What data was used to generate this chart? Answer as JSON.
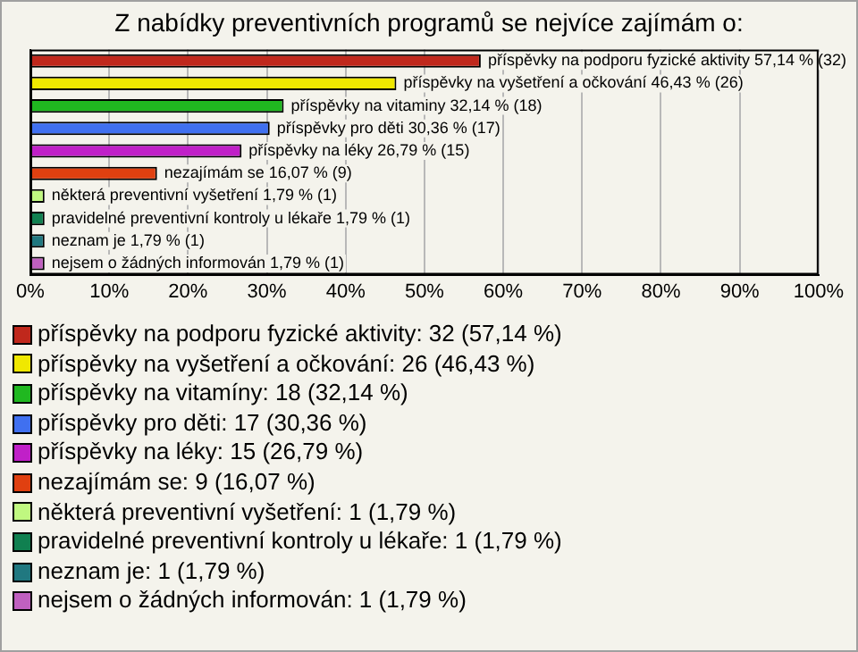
{
  "chart_data": {
    "type": "bar",
    "orientation": "horizontal",
    "title": "Z nabídky preventivních programů se nejvíce zajímám o:",
    "categories": [
      null,
      null,
      null,
      null,
      null,
      null,
      null,
      null,
      null,
      null
    ],
    "xlim": [
      0,
      100
    ],
    "xticks": [
      {
        "value": 0,
        "label": "0%"
      },
      {
        "value": 10,
        "label": "10%"
      },
      {
        "value": 20,
        "label": "20%"
      },
      {
        "value": 30,
        "label": "30%"
      },
      {
        "value": 40,
        "label": "40%"
      },
      {
        "value": 50,
        "label": "50%"
      },
      {
        "value": 60,
        "label": "60%"
      },
      {
        "value": 70,
        "label": "70%"
      },
      {
        "value": 80,
        "label": "80%"
      },
      {
        "value": 90,
        "label": "90%"
      },
      {
        "value": 100,
        "label": "100%"
      }
    ],
    "grid": "x",
    "legend": "bottom",
    "series": [
      {
        "name": "příspěvky na podporu fyzické aktivity: 32 (57,14 %)",
        "color": "#c0281c",
        "values": [
          57.14,
          null,
          null,
          null,
          null,
          null,
          null,
          null,
          null,
          null
        ],
        "value_labels": [
          "příspěvky na podporu fyzické aktivity 57,14 % (32)",
          null,
          null,
          null,
          null,
          null,
          null,
          null,
          null,
          null
        ]
      },
      {
        "name": "příspěvky na vyšetření a očkování: 26 (46,43 %)",
        "color": "#f0e800",
        "values": [
          null,
          46.43,
          null,
          null,
          null,
          null,
          null,
          null,
          null,
          null
        ],
        "value_labels": [
          null,
          "příspěvky na vyšetření a očkování 46,43 % (26)",
          null,
          null,
          null,
          null,
          null,
          null,
          null,
          null
        ]
      },
      {
        "name": "příspěvky na vitamíny: 18 (32,14 %)",
        "color": "#20b820",
        "values": [
          null,
          null,
          32.14,
          null,
          null,
          null,
          null,
          null,
          null,
          null
        ],
        "value_labels": [
          null,
          null,
          "příspěvky na vitaminy 32,14 % (18)",
          null,
          null,
          null,
          null,
          null,
          null,
          null
        ]
      },
      {
        "name": "příspěvky pro děti: 17 (30,36 %)",
        "color": "#4070f0",
        "values": [
          null,
          null,
          null,
          30.36,
          null,
          null,
          null,
          null,
          null,
          null
        ],
        "value_labels": [
          null,
          null,
          null,
          "příspěvky pro děti 30,36 % (17)",
          null,
          null,
          null,
          null,
          null,
          null
        ]
      },
      {
        "name": "příspěvky na léky: 15 (26,79 %)",
        "color": "#c020c8",
        "values": [
          null,
          null,
          null,
          null,
          26.79,
          null,
          null,
          null,
          null,
          null
        ],
        "value_labels": [
          null,
          null,
          null,
          null,
          "příspěvky na léky 26,79 % (15)",
          null,
          null,
          null,
          null,
          null
        ]
      },
      {
        "name": "nezajímám se: 9 (16,07 %)",
        "color": "#e04010",
        "values": [
          null,
          null,
          null,
          null,
          null,
          16.07,
          null,
          null,
          null,
          null
        ],
        "value_labels": [
          null,
          null,
          null,
          null,
          null,
          "nezajímám se 16,07 % (9)",
          null,
          null,
          null,
          null
        ]
      },
      {
        "name": "některá preventivní vyšetření: 1 (1,79 %)",
        "color": "#c0f880",
        "values": [
          null,
          null,
          null,
          null,
          null,
          null,
          1.79,
          null,
          null,
          null
        ],
        "value_labels": [
          null,
          null,
          null,
          null,
          null,
          null,
          "některá preventivní vyšetření 1,79 % (1)",
          null,
          null,
          null
        ]
      },
      {
        "name": "pravidelné preventivní kontroly u lékaře: 1 (1,79 %)",
        "color": "#108050",
        "values": [
          null,
          null,
          null,
          null,
          null,
          null,
          null,
          1.79,
          null,
          null
        ],
        "value_labels": [
          null,
          null,
          null,
          null,
          null,
          null,
          null,
          "pravidelné preventivní kontroly u lékaře 1,79 % (1)",
          null,
          null
        ]
      },
      {
        "name": "neznam je: 1 (1,79 %)",
        "color": "#207880",
        "values": [
          null,
          null,
          null,
          null,
          null,
          null,
          null,
          null,
          1.79,
          null
        ],
        "value_labels": [
          null,
          null,
          null,
          null,
          null,
          null,
          null,
          null,
          "neznam je 1,79 % (1)",
          null
        ]
      },
      {
        "name": "nejsem o žádných informován: 1 (1,79 %)",
        "color": "#c060c0",
        "values": [
          null,
          null,
          null,
          null,
          null,
          null,
          null,
          null,
          null,
          1.79
        ],
        "value_labels": [
          null,
          null,
          null,
          null,
          null,
          null,
          null,
          null,
          null,
          "nejsem o žádných informován 1,79 % (1)"
        ]
      }
    ]
  }
}
